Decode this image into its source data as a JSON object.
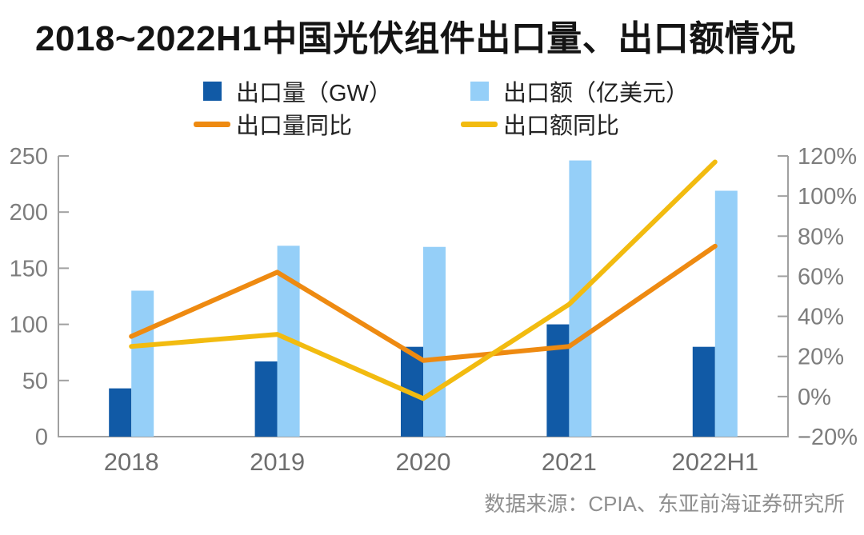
{
  "title": "2018~2022H1中国光伏组件出口量、出口额情况",
  "source_note": "数据来源：CPIA、东亚前海证券研究所",
  "colors": {
    "export_volume_bar": "#115aa6",
    "export_value_bar": "#95cff8",
    "export_volume_yoy_line": "#ee8a11",
    "export_value_yoy_line": "#f2bb10",
    "axis_line": "#a0a0a0",
    "tick_label": "#7d7d7d",
    "title_text": "#141414",
    "source_text": "#8f8f8f"
  },
  "chart_data": {
    "type": "bar+line combo",
    "title": "2018~2022H1中国光伏组件出口量、出口额情况",
    "categories": [
      "2018",
      "2019",
      "2020",
      "2021",
      "2022H1"
    ],
    "series": [
      {
        "id": "export-volume",
        "name": "出口量（GW）",
        "type": "bar",
        "axis": "left",
        "color": "#115aa6",
        "values": [
          43,
          67,
          80,
          100,
          80
        ]
      },
      {
        "id": "export-value",
        "name": "出口额（亿美元）",
        "type": "bar",
        "axis": "left",
        "color": "#95cff8",
        "values": [
          130,
          170,
          169,
          246,
          219
        ]
      },
      {
        "id": "export-volume-yoy",
        "name": "出口量同比",
        "type": "line",
        "axis": "right",
        "color": "#ee8a11",
        "values": [
          30,
          62,
          18,
          25,
          75
        ],
        "unit": "%"
      },
      {
        "id": "export-value-yoy",
        "name": "出口额同比",
        "type": "line",
        "axis": "right",
        "color": "#f2bb10",
        "values": [
          25,
          31,
          -1,
          46,
          117
        ],
        "unit": "%"
      }
    ],
    "left_axis": {
      "min": 0,
      "max": 250,
      "step": 50,
      "ticks": [
        {
          "value": 0,
          "label": "0"
        },
        {
          "value": 50,
          "label": "50"
        },
        {
          "value": 100,
          "label": "100"
        },
        {
          "value": 150,
          "label": "150"
        },
        {
          "value": 200,
          "label": "200"
        },
        {
          "value": 250,
          "label": "250"
        }
      ]
    },
    "right_axis": {
      "min": -20,
      "max": 120,
      "step": 20,
      "ticks": [
        {
          "value": -20,
          "label": "−20%"
        },
        {
          "value": 0,
          "label": "0%"
        },
        {
          "value": 20,
          "label": "20%"
        },
        {
          "value": 40,
          "label": "40%"
        },
        {
          "value": 60,
          "label": "60%"
        },
        {
          "value": 80,
          "label": "80%"
        },
        {
          "value": 100,
          "label": "100%"
        },
        {
          "value": 120,
          "label": "120%"
        }
      ]
    },
    "layout": {
      "legend_position": "top",
      "grid": "off",
      "background": "#ffffff"
    }
  }
}
